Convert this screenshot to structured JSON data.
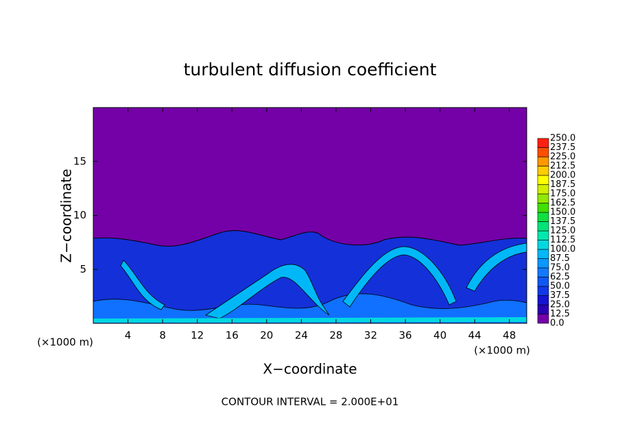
{
  "chart_data": {
    "type": "contour",
    "title": "turbulent diffusion coefficient",
    "x_label": "X−coordinate",
    "y_label": "Z−coordinate",
    "x_unit_label": "(×1000 m)",
    "footer": "CONTOUR INTERVAL = 2.000E+01",
    "xlim": [
      0,
      50
    ],
    "ylim": [
      0,
      20
    ],
    "xticks": [
      4,
      8,
      12,
      16,
      20,
      24,
      28,
      32,
      36,
      40,
      44,
      48
    ],
    "yticks": [
      5,
      10,
      15
    ],
    "colorbar_levels": [
      {
        "value": 0,
        "label": "0.0"
      },
      12.5,
      {
        "value": 25,
        "label": "25.0"
      },
      37.5,
      {
        "value": 50,
        "label": "50.0"
      },
      62.5,
      {
        "value": 75,
        "label": "75.0"
      },
      87.5,
      {
        "value": 100,
        "label": "100.0"
      },
      112.5,
      {
        "value": 125,
        "label": "125.0"
      },
      137.5,
      {
        "value": 150,
        "label": "150.0"
      },
      162.5,
      {
        "value": 175,
        "label": "175.0"
      },
      187.5,
      {
        "value": 200,
        "label": "200.0"
      },
      212.5,
      {
        "value": 225,
        "label": "225.0"
      },
      237.5,
      {
        "value": 250,
        "label": "250.0"
      }
    ],
    "colorbar_colors": [
      "#7400a8",
      "#2a00b4",
      "#1414d2",
      "#1038e8",
      "#1058f4",
      "#1478ff",
      "#0898ff",
      "#00b8f8",
      "#00d8e0",
      "#00e8b0",
      "#00e478",
      "#10e040",
      "#40e000",
      "#90e800",
      "#d0f000",
      "#ffff00",
      "#ffcc00",
      "#ff9800",
      "#ff5000",
      "#ff2010"
    ]
  }
}
